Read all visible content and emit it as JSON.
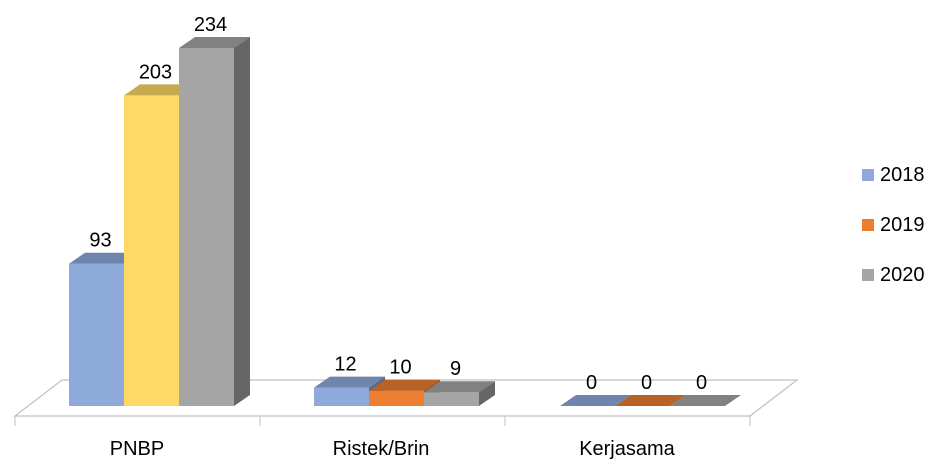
{
  "chart_data": {
    "type": "bar",
    "style": "3d-clustered-column",
    "title": "",
    "xlabel": "",
    "ylabel": "",
    "categories": [
      "PNBP",
      "Ristek/Brin",
      "Kerjasama"
    ],
    "series": [
      {
        "name": "2018",
        "values": [
          93,
          12,
          0
        ],
        "color": "#8EAADB",
        "color_pnbp": "#8EAADB"
      },
      {
        "name": "2019",
        "values": [
          203,
          10,
          0
        ],
        "color": "#ED7D31",
        "color_pnbp": "#FFD966"
      },
      {
        "name": "2020",
        "values": [
          234,
          9,
          0
        ],
        "color": "#A5A5A5",
        "color_pnbp": "#A5A5A5"
      }
    ],
    "ylim": [
      0,
      234
    ],
    "grid": false,
    "legend_position": "right",
    "data_labels": true
  }
}
